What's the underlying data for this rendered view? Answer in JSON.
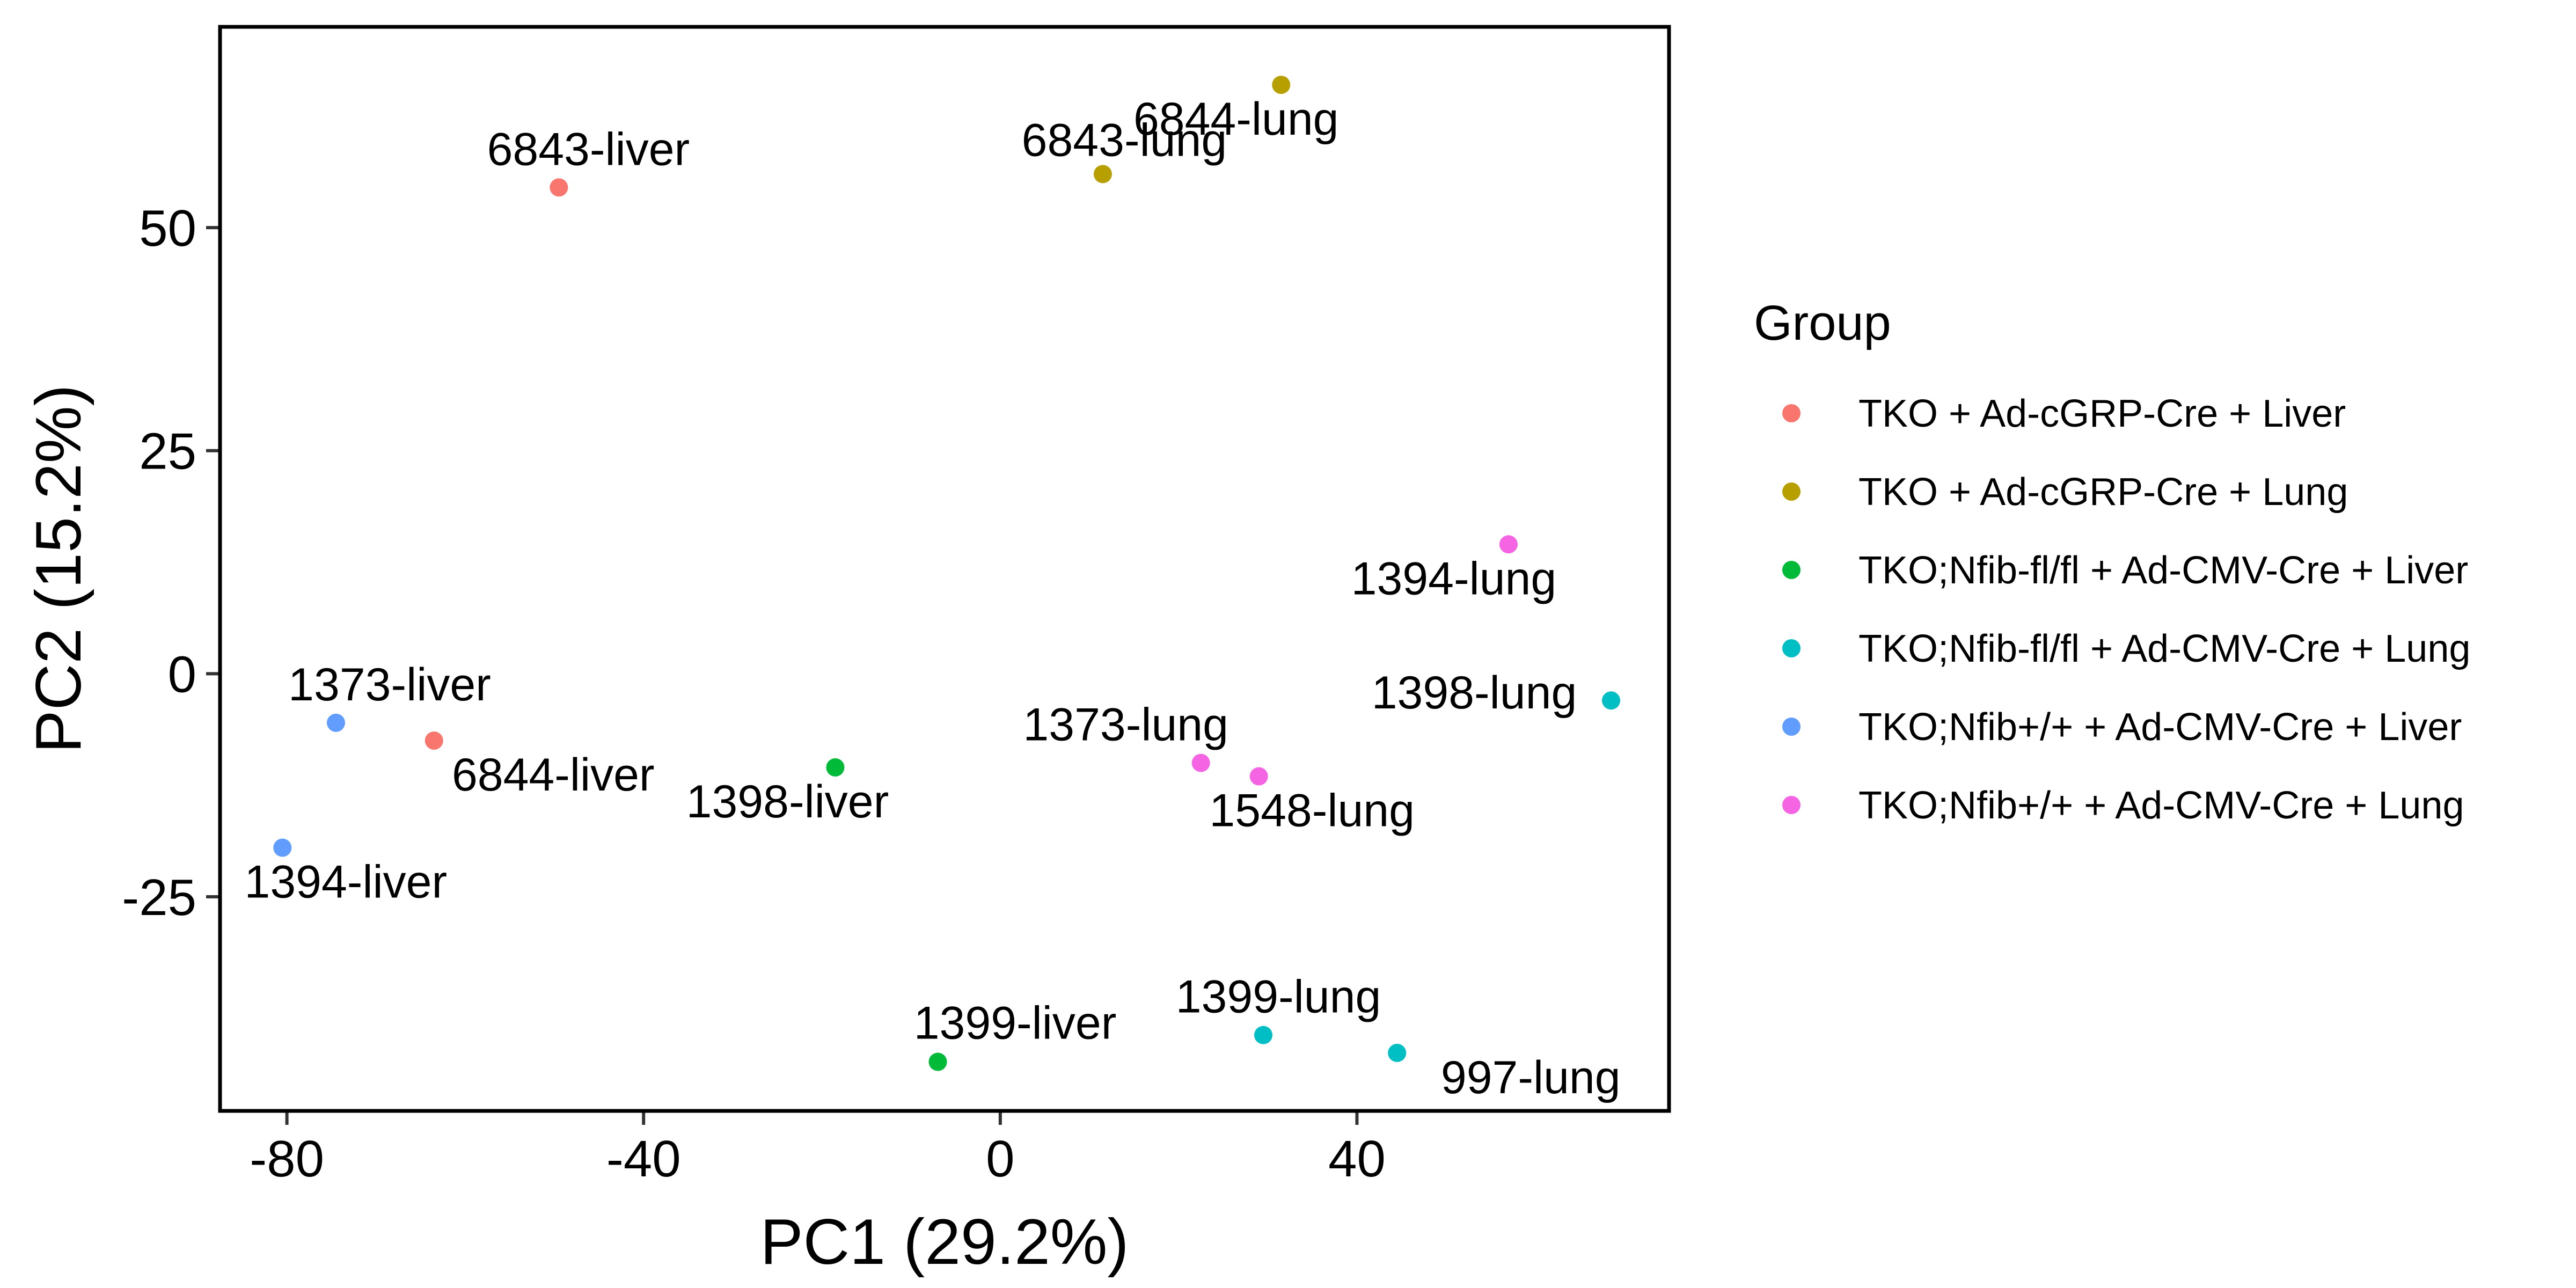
{
  "chart_data": {
    "type": "scatter",
    "xlabel": "PC1 (29.2%)",
    "ylabel": "PC2 (15.2%)",
    "xlim": [
      -87.5,
      75
    ],
    "ylim": [
      -49,
      72.5
    ],
    "x_ticks": [
      -80,
      -40,
      0,
      40
    ],
    "y_ticks": [
      -25,
      0,
      25,
      50
    ],
    "grid": false,
    "legend": {
      "title": "Group",
      "placement": "right"
    },
    "series": [
      {
        "name": "TKO + Ad-cGRP-Cre + Liver",
        "color": "#F8766D",
        "points": [
          {
            "x": -49.5,
            "y": 54.5,
            "label": "6843-liver"
          },
          {
            "x": -63.5,
            "y": -7.5,
            "label": "6844-liver"
          }
        ]
      },
      {
        "name": "TKO + Ad-cGRP-Cre + Lung",
        "color": "#B79F00",
        "points": [
          {
            "x": 11.5,
            "y": 56,
            "label": "6843-lung"
          },
          {
            "x": 31.5,
            "y": 66,
            "label": "6844-lung"
          }
        ]
      },
      {
        "name": "TKO;Nfib-fl/fl + Ad-CMV-Cre + Liver",
        "color": "#00BA38",
        "points": [
          {
            "x": -18.5,
            "y": -10.5,
            "label": "1398-liver"
          },
          {
            "x": -7.0,
            "y": -43.5,
            "label": "1399-liver"
          }
        ]
      },
      {
        "name": "TKO;Nfib-fl/fl + Ad-CMV-Cre + Lung",
        "color": "#00BFC4",
        "points": [
          {
            "x": 68.5,
            "y": -3,
            "label": "1398-lung"
          },
          {
            "x": 29.5,
            "y": -40.5,
            "label": "1399-lung"
          },
          {
            "x": 44.5,
            "y": -42.5,
            "label": "997-lung"
          }
        ]
      },
      {
        "name": "TKO;Nfib+/+ + Ad-CMV-Cre + Liver",
        "color": "#619CFF",
        "points": [
          {
            "x": -74.5,
            "y": -5.5,
            "label": "1373-liver"
          },
          {
            "x": -80.5,
            "y": -19.5,
            "label": "1394-liver"
          }
        ]
      },
      {
        "name": "TKO;Nfib+/+ + Ad-CMV-Cre + Lung",
        "color": "#F564E3",
        "points": [
          {
            "x": 57.0,
            "y": 14.5,
            "label": "1394-lung"
          },
          {
            "x": 22.5,
            "y": -10,
            "label": "1373-lung"
          },
          {
            "x": 29.0,
            "y": -11.5,
            "label": "1548-lung"
          }
        ]
      }
    ]
  }
}
